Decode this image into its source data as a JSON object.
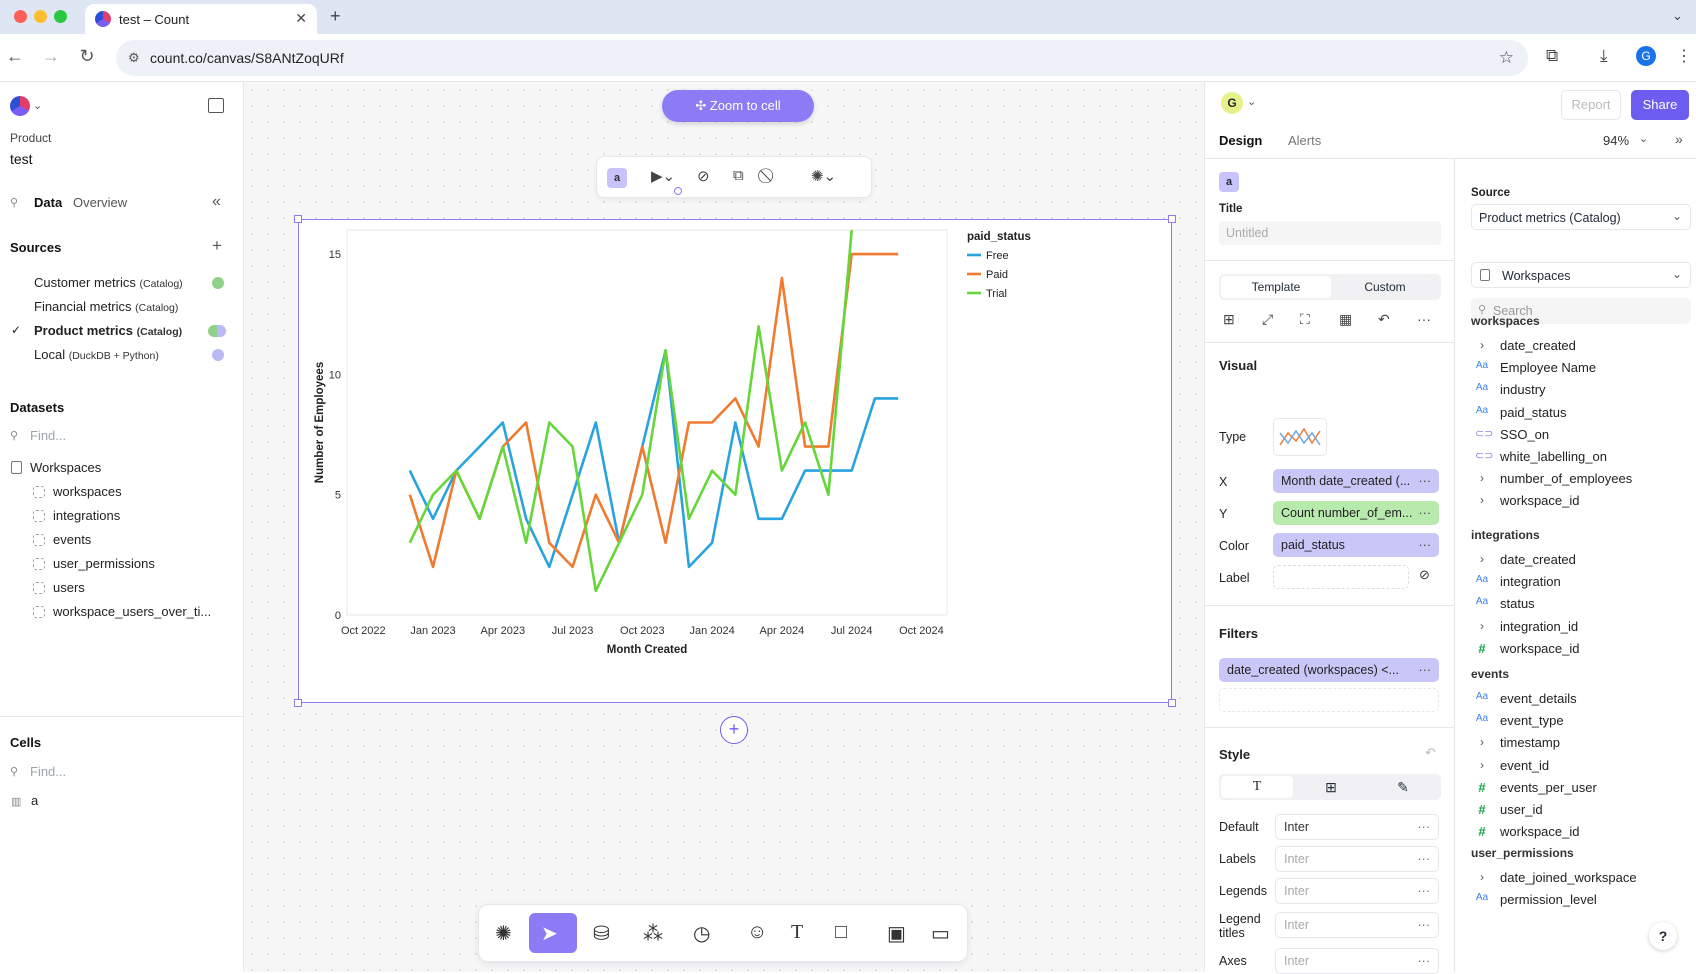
{
  "browser": {
    "tab_title": "test – Count",
    "url": "count.co/canvas/S8ANtZoqURf"
  },
  "left": {
    "product_label": "Product",
    "canvas_name": "test",
    "tabs": [
      "Data",
      "Overview"
    ],
    "sources_title": "Sources",
    "sources": [
      {
        "name": "Customer metrics",
        "tag": "(Catalog)",
        "checked": false,
        "dot": "#8fd18a"
      },
      {
        "name": "Financial metrics",
        "tag": "(Catalog)",
        "checked": false,
        "dot": ""
      },
      {
        "name": "Product metrics",
        "tag": "(Catalog)",
        "checked": true,
        "dot": "#8fd18a"
      },
      {
        "name": "Local",
        "tag": "(DuckDB + Python)",
        "checked": false,
        "dot": "#b9b9f3"
      }
    ],
    "datasets_title": "Datasets",
    "find_placeholder": "Find...",
    "dataset_group": "Workspaces",
    "datasets": [
      "workspaces",
      "integrations",
      "events",
      "user_permissions",
      "users",
      "workspace_users_over_ti..."
    ],
    "cells_title": "Cells",
    "cells_find": "Find...",
    "cells": [
      "a"
    ]
  },
  "canvas": {
    "zoom_button": "Zoom to cell",
    "cell_badge": "a",
    "add_icon": "+"
  },
  "chart_data": {
    "type": "line",
    "title": "",
    "xlabel": "Month Created",
    "ylabel": "Number of Employees",
    "ylim": [
      0,
      16
    ],
    "yticks": [
      0,
      5,
      10,
      15
    ],
    "xticks": [
      "Oct 2022",
      "Jan 2023",
      "Apr 2023",
      "Jul 2023",
      "Oct 2023",
      "Jan 2024",
      "Apr 2024",
      "Jul 2024",
      "Oct 2024"
    ],
    "legend_title": "paid_status",
    "legend_position": "top-right",
    "x": [
      "2022-12",
      "2023-01",
      "2023-02",
      "2023-03",
      "2023-04",
      "2023-05",
      "2023-06",
      "2023-07",
      "2023-08",
      "2023-09",
      "2023-10",
      "2023-11",
      "2023-12",
      "2024-01",
      "2024-02",
      "2024-03",
      "2024-04",
      "2024-05",
      "2024-06",
      "2024-07",
      "2024-08",
      "2024-09",
      "2024-10",
      "2024-11"
    ],
    "series": [
      {
        "name": "Free",
        "color": "#29a3e0",
        "values": [
          6,
          4,
          6,
          7,
          8,
          4,
          2,
          5,
          8,
          3,
          7,
          11,
          2,
          3,
          8,
          4,
          4,
          6,
          6,
          6,
          9,
          9,
          null,
          null
        ]
      },
      {
        "name": "Paid",
        "color": "#f07a30",
        "values": [
          5,
          2,
          6,
          4,
          7,
          8,
          3,
          2,
          5,
          3,
          7,
          3,
          8,
          8,
          9,
          7,
          14,
          7,
          7,
          15,
          15,
          15,
          null,
          null
        ]
      },
      {
        "name": "Trial",
        "color": "#66d63a",
        "values": [
          3,
          5,
          6,
          4,
          7,
          3,
          8,
          7,
          1,
          3,
          5,
          11,
          4,
          6,
          5,
          12,
          6,
          8,
          5,
          16,
          null,
          null,
          null,
          null
        ]
      }
    ]
  },
  "right": {
    "avatar_letter": "G",
    "report_button": "Report",
    "share_button": "Share",
    "tabs": [
      "Design",
      "Alerts"
    ],
    "zoom_level": "94%",
    "cell_badge": "a",
    "title_label": "Title",
    "title_placeholder": "Untitled",
    "mode_tabs": [
      "Template",
      "Custom"
    ],
    "visual_label": "Visual",
    "type_label": "Type",
    "x_label": "X",
    "x_value": "Month date_created (...",
    "y_label": "Y",
    "y_value": "Count number_of_em...",
    "color_label": "Color",
    "color_value": "paid_status",
    "label_label": "Label",
    "filters_label": "Filters",
    "filter_value": "date_created (workspaces) <...",
    "style_label": "Style",
    "fonts": [
      {
        "label": "Default",
        "value": "Inter"
      },
      {
        "label": "Labels",
        "value": "Inter"
      },
      {
        "label": "Legends",
        "value": "Inter"
      },
      {
        "label": "Legend titles",
        "value": "Inter"
      },
      {
        "label": "Axes",
        "value": "Inter"
      }
    ],
    "source_label": "Source",
    "source_value": "Product metrics (Catalog)",
    "dataset_value": "Workspaces",
    "search_placeholder": "Search",
    "groups": [
      {
        "name": "workspaces",
        "fields": [
          {
            "icon": "chev",
            "name": "date_created"
          },
          {
            "icon": "text",
            "name": "Employee Name"
          },
          {
            "icon": "text",
            "name": "industry"
          },
          {
            "icon": "text",
            "name": "paid_status"
          },
          {
            "icon": "tog",
            "name": "SSO_on"
          },
          {
            "icon": "tog",
            "name": "white_labelling_on"
          },
          {
            "icon": "chev",
            "name": "number_of_employees"
          },
          {
            "icon": "chev",
            "name": "workspace_id"
          }
        ]
      },
      {
        "name": "integrations",
        "fields": [
          {
            "icon": "chev",
            "name": "date_created"
          },
          {
            "icon": "text",
            "name": "integration"
          },
          {
            "icon": "text",
            "name": "status"
          },
          {
            "icon": "chev",
            "name": "integration_id"
          },
          {
            "icon": "hash",
            "name": "workspace_id"
          }
        ]
      },
      {
        "name": "events",
        "fields": [
          {
            "icon": "text",
            "name": "event_details"
          },
          {
            "icon": "text",
            "name": "event_type"
          },
          {
            "icon": "chev",
            "name": "timestamp"
          },
          {
            "icon": "chev",
            "name": "event_id"
          },
          {
            "icon": "hash",
            "name": "events_per_user"
          },
          {
            "icon": "hash",
            "name": "user_id"
          },
          {
            "icon": "hash",
            "name": "workspace_id"
          }
        ]
      },
      {
        "name": "user_permissions",
        "fields": [
          {
            "icon": "chev",
            "name": "date_joined_workspace"
          },
          {
            "icon": "text",
            "name": "permission_level"
          }
        ]
      }
    ],
    "help": "?"
  }
}
